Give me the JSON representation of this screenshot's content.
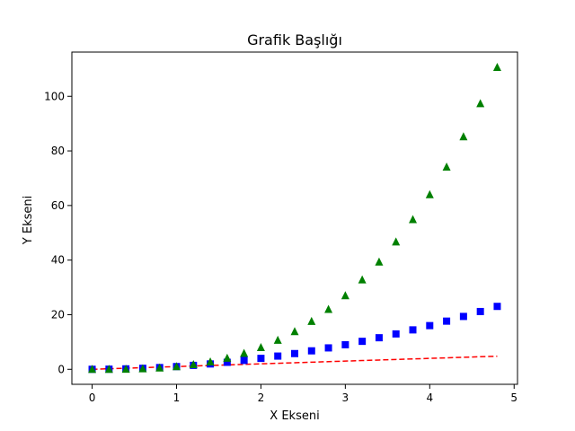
{
  "chart_data": {
    "type": "scatter",
    "title": "Grafik Başlığı",
    "xlabel": "X Ekseni",
    "ylabel": "Y Ekseni",
    "xlim": [
      -0.24,
      5.04
    ],
    "ylim": [
      -5.5,
      116.2
    ],
    "xticks": [
      0,
      1,
      2,
      3,
      4,
      5
    ],
    "yticks": [
      0,
      20,
      40,
      60,
      80,
      100
    ],
    "grid": false,
    "legend": "none",
    "x": [
      0,
      0.2,
      0.4,
      0.6,
      0.8,
      1.0,
      1.2,
      1.4,
      1.6,
      1.8,
      2.0,
      2.2,
      2.4,
      2.6,
      2.8,
      3.0,
      3.2,
      3.4,
      3.6,
      3.8,
      4.0,
      4.2,
      4.4,
      4.6,
      4.8
    ],
    "series": [
      {
        "style": "dashed-line",
        "color": "#ff0000",
        "values": [
          0,
          0.2,
          0.4,
          0.6,
          0.8,
          1.0,
          1.2,
          1.4,
          1.6,
          1.8,
          2.0,
          2.2,
          2.4,
          2.6,
          2.8,
          3.0,
          3.2,
          3.4,
          3.6,
          3.8,
          4.0,
          4.2,
          4.4,
          4.6,
          4.8
        ]
      },
      {
        "style": "square-markers",
        "color": "#0000ff",
        "values": [
          0,
          0.04,
          0.16,
          0.36,
          0.64,
          1.0,
          1.44,
          1.96,
          2.56,
          3.24,
          4.0,
          4.84,
          5.76,
          6.76,
          7.84,
          9.0,
          10.24,
          11.56,
          12.96,
          14.44,
          16.0,
          17.64,
          19.36,
          21.16,
          23.04
        ]
      },
      {
        "style": "triangle-markers",
        "color": "#008000",
        "values": [
          0,
          0.008,
          0.064,
          0.216,
          0.512,
          1.0,
          1.728,
          2.744,
          4.096,
          5.832,
          8.0,
          10.648,
          13.824,
          17.576,
          21.952,
          27.0,
          32.768,
          39.304,
          46.656,
          54.872,
          64.0,
          74.088,
          85.184,
          97.336,
          110.592
        ]
      }
    ]
  }
}
